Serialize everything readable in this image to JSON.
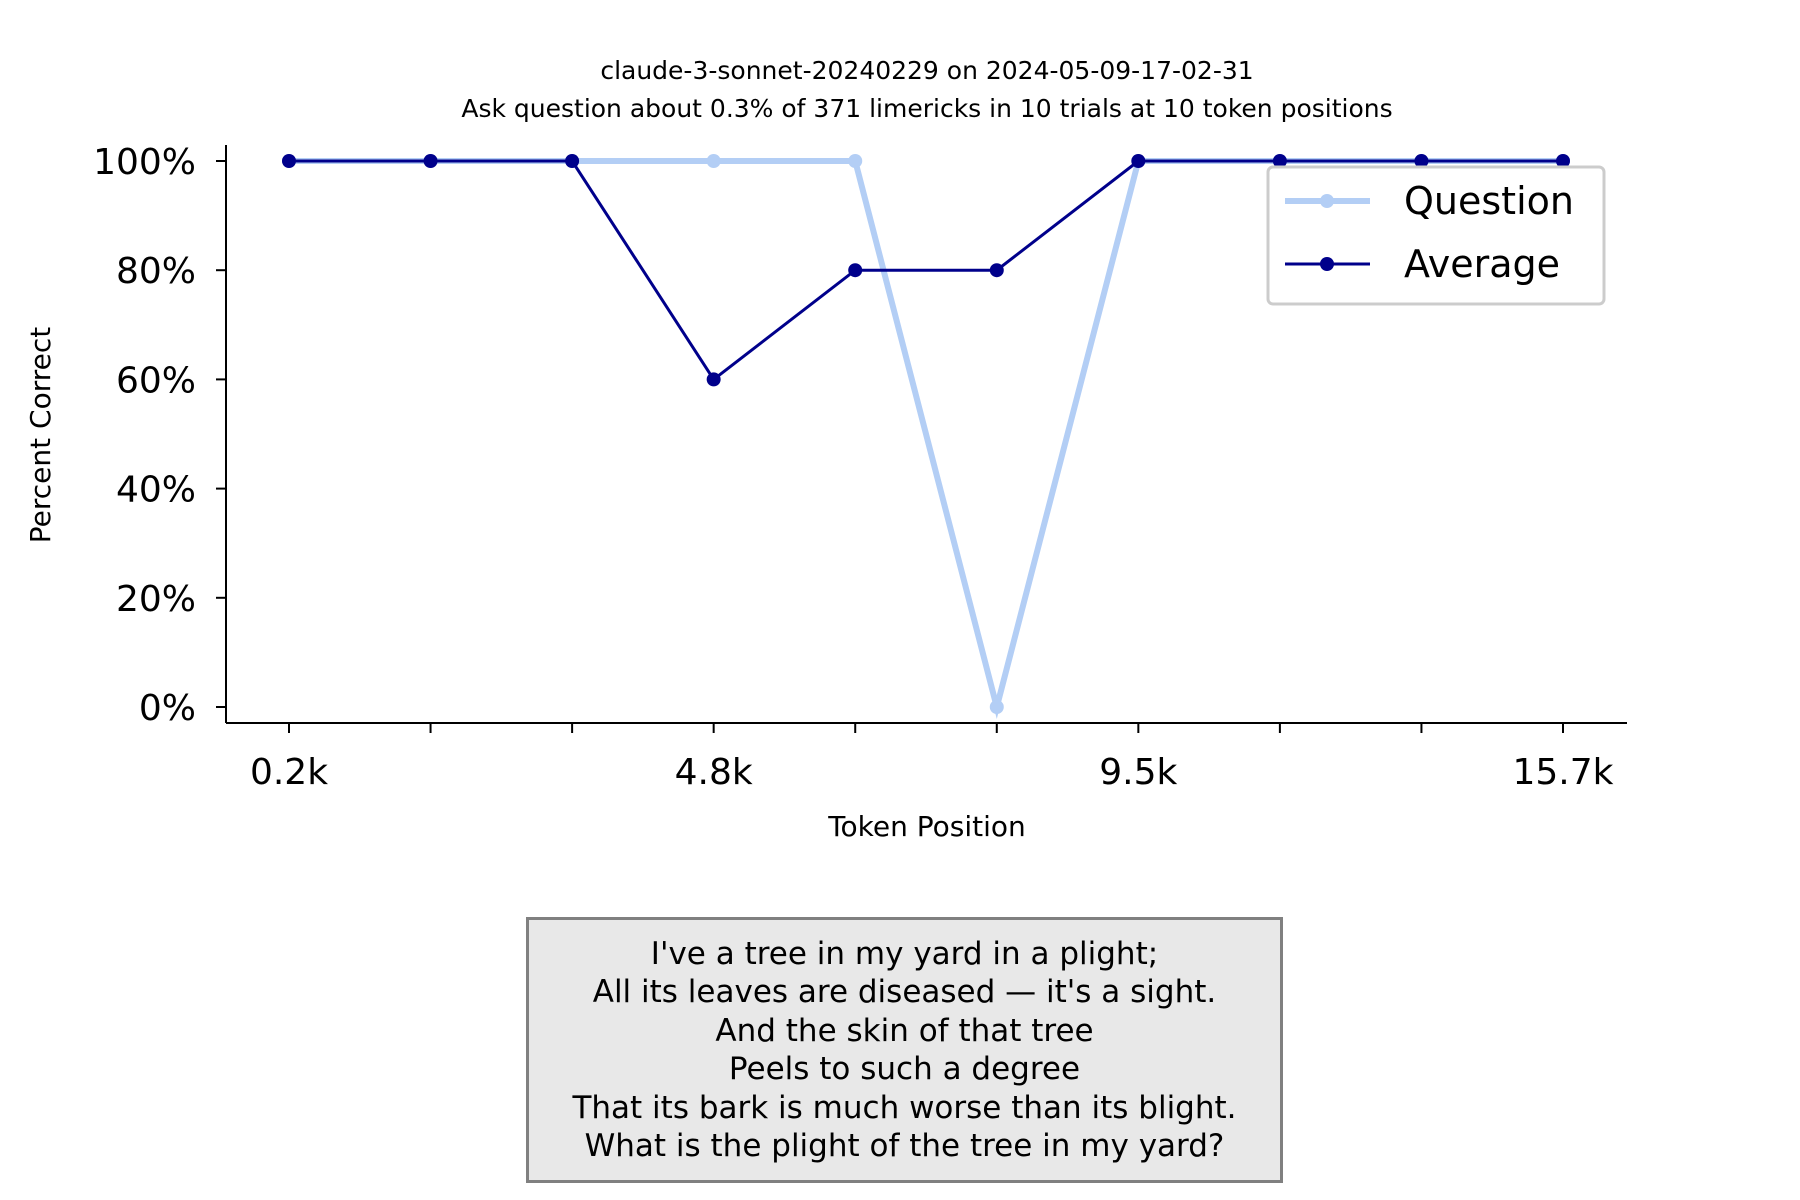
{
  "chart_data": {
    "type": "line",
    "title": "claude-3-sonnet-20240229 on 2024-05-09-17-02-31",
    "subtitle": "Ask question about 0.3% of 371 limericks in 10 trials at 10 token positions",
    "xlabel": "Token Position",
    "ylabel": "Percent Correct",
    "x_tick_labels": [
      "0.2k",
      "4.8k",
      "9.5k",
      "15.7k"
    ],
    "y_tick_labels": [
      "0%",
      "20%",
      "40%",
      "60%",
      "80%",
      "100%"
    ],
    "ylim": [
      0,
      100
    ],
    "grid": false,
    "legend_position": "top-right",
    "series": [
      {
        "name": "Question",
        "color": "#b3cef5",
        "values": [
          100,
          100,
          100,
          100,
          100,
          0,
          100,
          100,
          100,
          100
        ]
      },
      {
        "name": "Average",
        "color": "#00008b",
        "values": [
          100,
          100,
          100,
          60,
          80,
          80,
          100,
          100,
          100,
          100
        ]
      }
    ]
  },
  "limerick": {
    "lines": [
      "I've a tree in my yard in a plight;",
      "All its leaves are diseased — it's a sight.",
      "And the skin of that tree",
      "Peels to such a degree",
      "That its bark is much worse than its blight.",
      "What is the plight of the tree in my yard?"
    ]
  }
}
